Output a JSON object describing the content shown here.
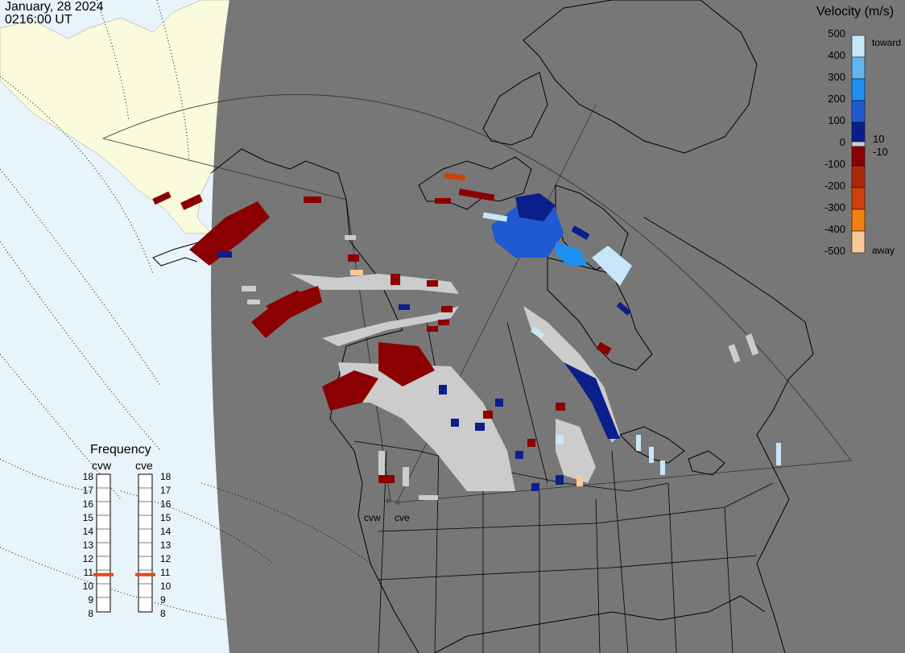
{
  "header": {
    "date": "January, 28 2024",
    "time": "0216:00 UT"
  },
  "velocity_scale": {
    "title": "Velocity (m/s)",
    "ticks": [
      "500",
      "400",
      "300",
      "200",
      "100",
      "10",
      "0",
      "-10",
      "-100",
      "-200",
      "-300",
      "-400",
      "-500"
    ],
    "toward_label": "toward",
    "away_label": "away",
    "colors": {
      "toward_max": "#c8e6fa",
      "toward_high": "#1e90f0",
      "toward_mid": "#1f5ad0",
      "toward_low": "#0a1f8c",
      "away_low": "#8b0000",
      "away_mid": "#a82a0a",
      "away_high": "#e85a10",
      "away_max": "#f8c89a",
      "ground_scatter": "#cccccc"
    }
  },
  "frequency_panel": {
    "title": "Frequency",
    "radars": [
      "cvw",
      "cve"
    ],
    "scale": [
      "18",
      "17",
      "16",
      "15",
      "14",
      "13",
      "12",
      "11",
      "10",
      "9",
      "8"
    ],
    "cvw_mhz": 11,
    "cve_mhz": 11
  },
  "radar_sites": [
    {
      "name": "cvw"
    },
    {
      "name": "cve"
    }
  ],
  "colors": {
    "land_background": "#777777",
    "ocean": "#e8f4fc",
    "ice_land": "#fafadc",
    "coastline": "#000000",
    "frequency_marker": "#e0451a"
  }
}
